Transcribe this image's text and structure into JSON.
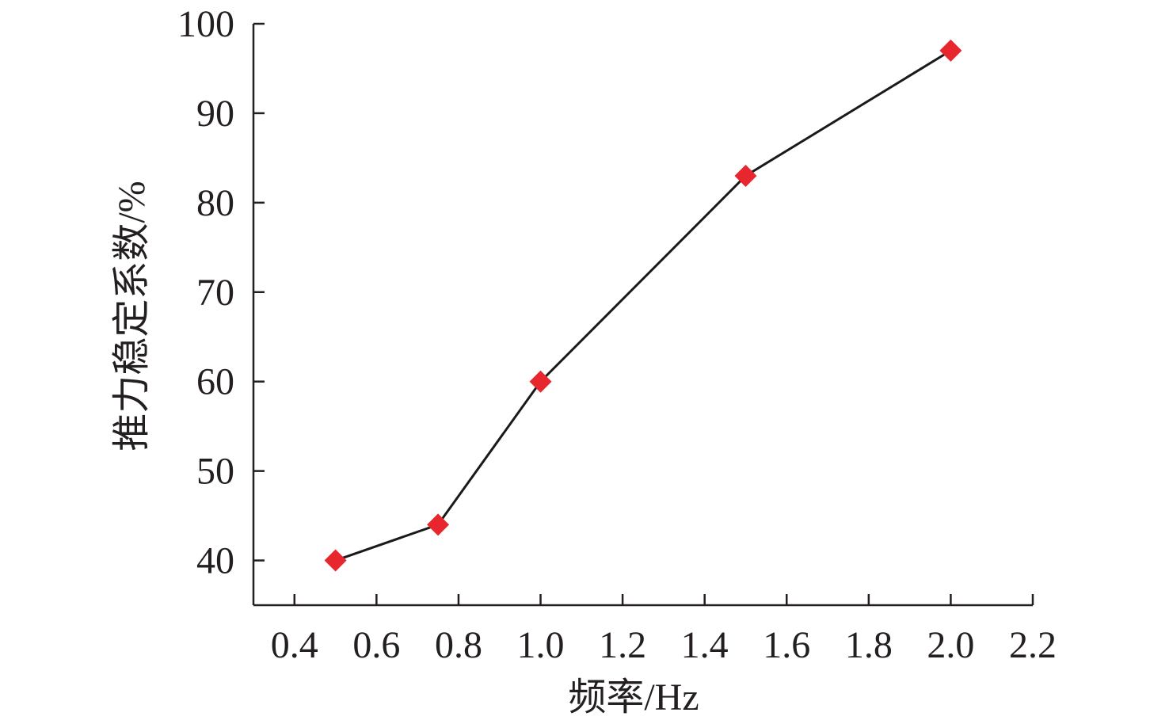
{
  "chart_data": {
    "type": "line",
    "xlabel": "频率/Hz",
    "ylabel": "推力稳定系数/%",
    "xlim": [
      0.3,
      2.2
    ],
    "ylim": [
      35,
      100
    ],
    "xticks": [
      "0.4",
      "0.6",
      "0.8",
      "1.0",
      "1.2",
      "1.4",
      "1.6",
      "1.8",
      "2.0",
      "2.2"
    ],
    "yticks": [
      "40",
      "50",
      "60",
      "70",
      "80",
      "90",
      "100"
    ],
    "grid": false,
    "series": [
      {
        "x": [
          0.5,
          0.75,
          1.0,
          1.5,
          2.0
        ],
        "y": [
          40,
          44,
          60,
          83,
          97
        ],
        "marker": "diamond",
        "marker_color": "#e8262d",
        "line_color": "#1a1a1a"
      }
    ]
  }
}
